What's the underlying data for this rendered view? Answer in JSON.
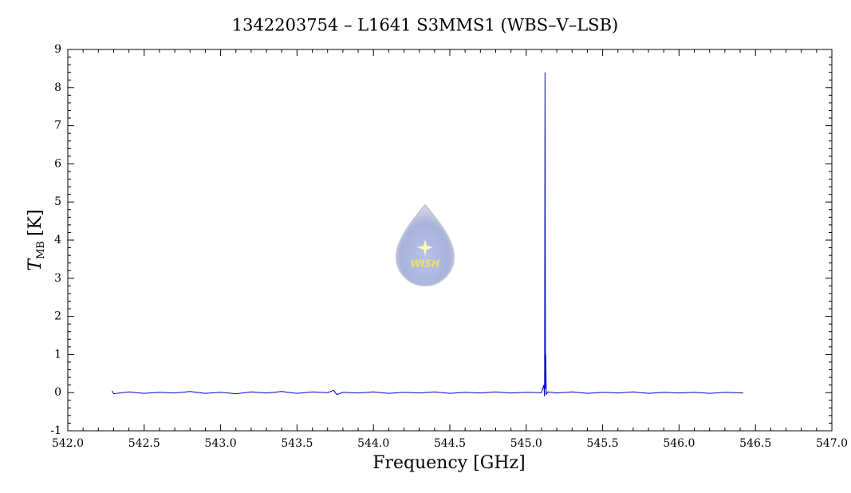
{
  "chart_data": {
    "type": "line",
    "title": "1342203754 – L1641 S3MMS1 (WBS–V–LSB)",
    "xlabel": "Frequency [GHz]",
    "ylabel": {
      "symbol": "T",
      "subscript": "MB",
      "unit": "[K]"
    },
    "watermark": "WISH",
    "color": "#0000cc",
    "x": [
      542.29,
      542.3,
      542.4,
      542.5,
      542.6,
      542.7,
      542.8,
      542.9,
      543.0,
      543.1,
      543.2,
      543.3,
      543.4,
      543.5,
      543.6,
      543.7,
      543.74,
      543.76,
      543.8,
      543.9,
      544.0,
      544.1,
      544.2,
      544.3,
      544.4,
      544.5,
      544.6,
      544.7,
      544.8,
      544.9,
      545.0,
      545.1,
      545.115,
      545.12,
      545.123,
      545.126,
      545.128,
      545.131,
      545.14,
      545.2,
      545.3,
      545.4,
      545.5,
      545.6,
      545.7,
      545.8,
      545.9,
      546.0,
      546.1,
      546.2,
      546.3,
      546.42
    ],
    "values": [
      0.05,
      -0.03,
      0.02,
      -0.02,
      0.01,
      -0.01,
      0.03,
      -0.02,
      0.01,
      -0.03,
      0.02,
      -0.01,
      0.03,
      -0.02,
      0.02,
      0.0,
      0.06,
      -0.05,
      0.01,
      -0.01,
      0.02,
      -0.02,
      0.01,
      -0.01,
      0.02,
      -0.02,
      0.01,
      -0.01,
      0.02,
      -0.01,
      0.01,
      0.0,
      0.2,
      -0.1,
      8.4,
      0.1,
      1.0,
      -0.05,
      0.02,
      -0.01,
      0.02,
      -0.02,
      0.01,
      -0.01,
      0.02,
      -0.02,
      0.01,
      -0.01,
      0.01,
      -0.02,
      0.01,
      -0.01
    ],
    "xlim": [
      542,
      547
    ],
    "xticks": [
      {
        "value": 542,
        "label": "542.0"
      },
      542.5,
      {
        "value": 543,
        "label": "543.0"
      },
      543.5,
      {
        "value": 544,
        "label": "544.0"
      },
      544.5,
      {
        "value": 545,
        "label": "545.0"
      },
      545.5,
      {
        "value": 546,
        "label": "546.0"
      },
      546.5,
      {
        "value": 547,
        "label": "547.0"
      }
    ],
    "ylim": [
      -1,
      9
    ],
    "yticks": [
      -1,
      0,
      1,
      2,
      3,
      4,
      5,
      6,
      7,
      8,
      9
    ]
  }
}
